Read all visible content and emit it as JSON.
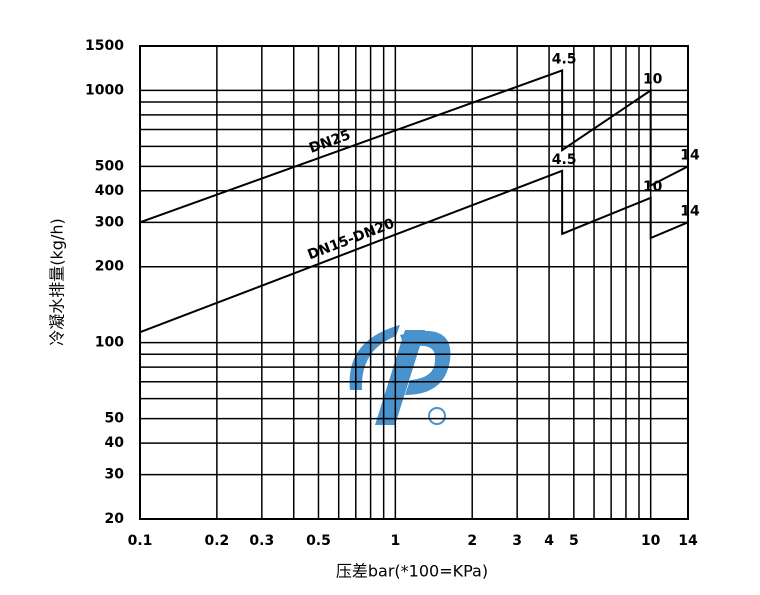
{
  "chart_data": {
    "type": "line",
    "xlabel": "压差bar(*100=KPa)",
    "ylabel": "冷凝水排量(kg/h)",
    "log_x": true,
    "log_y": true,
    "grid": true,
    "xlim": [
      0.1,
      14
    ],
    "ylim": [
      20,
      1500
    ],
    "xticks": [
      0.1,
      0.2,
      0.3,
      0.5,
      1,
      2,
      3,
      4,
      5,
      10,
      14
    ],
    "yticks": [
      20,
      30,
      40,
      50,
      100,
      200,
      300,
      400,
      500,
      1000,
      1500
    ],
    "xminor": [
      0.4,
      0.6,
      0.7,
      0.8,
      0.9,
      6,
      7,
      8,
      9
    ],
    "yminor": [
      60,
      70,
      80,
      90,
      600,
      700,
      800,
      900
    ],
    "series": [
      {
        "name": "DN25",
        "color": "#000000",
        "x": [
          0.1,
          4.5,
          4.5,
          10,
          10,
          14
        ],
        "values": [
          300,
          1200,
          580,
          1000,
          420,
          500
        ]
      },
      {
        "name": "DN15-DN20",
        "color": "#000000",
        "x": [
          0.1,
          4.5,
          4.5,
          10,
          10,
          14
        ],
        "values": [
          110,
          480,
          270,
          375,
          260,
          300
        ]
      }
    ],
    "annotations": [
      {
        "text": "4.5",
        "x": 4.5,
        "y": 1200
      },
      {
        "text": "10",
        "x": 10,
        "y": 1000
      },
      {
        "text": "14",
        "x": 14,
        "y": 500
      },
      {
        "text": "4.5",
        "x": 4.5,
        "y": 480
      },
      {
        "text": "10",
        "x": 10,
        "y": 375
      },
      {
        "text": "14",
        "x": 14,
        "y": 300
      }
    ]
  }
}
